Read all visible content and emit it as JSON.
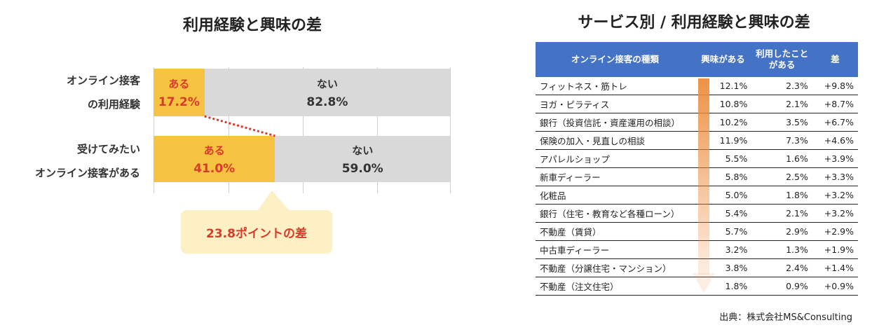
{
  "left": {
    "title": "利用経験と興味の差",
    "rows": [
      {
        "label_line1": "オンライン接客",
        "label_line2": "の利用経験",
        "yes_label": "ある",
        "yes_text": "17.2%",
        "no_label": "ない",
        "no_text": "82.8%"
      },
      {
        "label_line1": "受けてみたい",
        "label_line2": "オンライン接客がある",
        "yes_label": "ある",
        "yes_text": "41.0%",
        "no_label": "ない",
        "no_text": "59.0%"
      }
    ],
    "callout": "23.8ポイントの差"
  },
  "chart_data": {
    "type": "bar",
    "stacked": true,
    "orientation": "horizontal",
    "categories": [
      "オンライン接客の利用経験",
      "受けてみたいオンライン接客がある"
    ],
    "series": [
      {
        "name": "ある",
        "values": [
          17.2,
          41.0
        ]
      },
      {
        "name": "ない",
        "values": [
          82.8,
          59.0
        ]
      }
    ],
    "xlim": [
      0,
      100
    ],
    "colors": {
      "yes": "#f5c242",
      "no": "#d9d9d9",
      "yes_text": "#d93a2b",
      "callout_bg": "#fdf0c4"
    }
  },
  "right": {
    "title": "サービス別 / 利用経験と興味の差",
    "headers": [
      "オンライン接客の種類",
      "興味がある",
      "利用したことがある",
      "差"
    ],
    "rows": [
      [
        "フィットネス・筋トレ",
        "12.1%",
        "2.3%",
        "+9.8%"
      ],
      [
        "ヨガ・ピラティス",
        "10.8%",
        "2.1%",
        "+8.7%"
      ],
      [
        "銀行（投資信託・資産運用の相談）",
        "10.2%",
        "3.5%",
        "+6.7%"
      ],
      [
        "保険の加入・見直しの相談",
        "11.9%",
        "7.3%",
        "+4.6%"
      ],
      [
        "アパレルショップ",
        "5.5%",
        "1.6%",
        "+3.9%"
      ],
      [
        "新車ディーラー",
        "5.8%",
        "2.5%",
        "+3.3%"
      ],
      [
        "化粧品",
        "5.0%",
        "1.8%",
        "+3.2%"
      ],
      [
        "銀行（住宅・教育など各種ローン）",
        "5.4%",
        "2.1%",
        "+3.2%"
      ],
      [
        "不動産（賃貸）",
        "5.7%",
        "2.9%",
        "+2.9%"
      ],
      [
        "中古車ディーラー",
        "3.2%",
        "1.3%",
        "+1.9%"
      ],
      [
        "不動産（分譲住宅・マンション）",
        "3.8%",
        "2.4%",
        "+1.4%"
      ],
      [
        "不動産（注文住宅）",
        "1.8%",
        "0.9%",
        "+0.9%"
      ]
    ],
    "header_color": "#4472c4",
    "arrow_color": "#ed8c3c",
    "source": "出典：株式会社MS&Consulting"
  }
}
